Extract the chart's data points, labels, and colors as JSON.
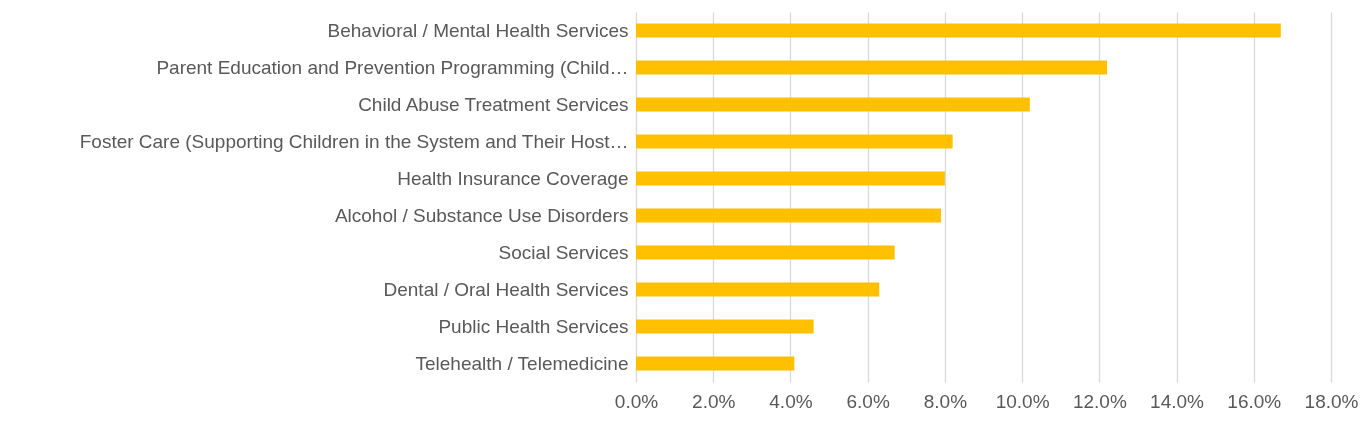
{
  "chart_data": {
    "type": "bar",
    "orientation": "horizontal",
    "categories": [
      "Behavioral / Mental Health Services",
      "Parent Education and Prevention Programming (Child…",
      "Child Abuse Treatment Services",
      "Foster Care (Supporting Children in the System and Their Host…",
      "Health Insurance Coverage",
      "Alcohol / Substance Use Disorders",
      "Social Services",
      "Dental / Oral Health Services",
      "Public Health Services",
      "Telehealth / Telemedicine"
    ],
    "values": [
      16.7,
      12.2,
      10.2,
      8.2,
      8.0,
      7.9,
      6.7,
      6.3,
      4.6,
      4.1
    ],
    "color": "#ffc000",
    "xlim": [
      0,
      18
    ],
    "xticks": [
      {
        "value": 0,
        "label": "0.0%"
      },
      {
        "value": 2,
        "label": "2.0%"
      },
      {
        "value": 4,
        "label": "4.0%"
      },
      {
        "value": 6,
        "label": "6.0%"
      },
      {
        "value": 8,
        "label": "8.0%"
      },
      {
        "value": 10,
        "label": "10.0%"
      },
      {
        "value": 12,
        "label": "12.0%"
      },
      {
        "value": 14,
        "label": "14.0%"
      },
      {
        "value": 16,
        "label": "16.0%"
      },
      {
        "value": 18,
        "label": "18.0%"
      }
    ],
    "grid": "x"
  }
}
